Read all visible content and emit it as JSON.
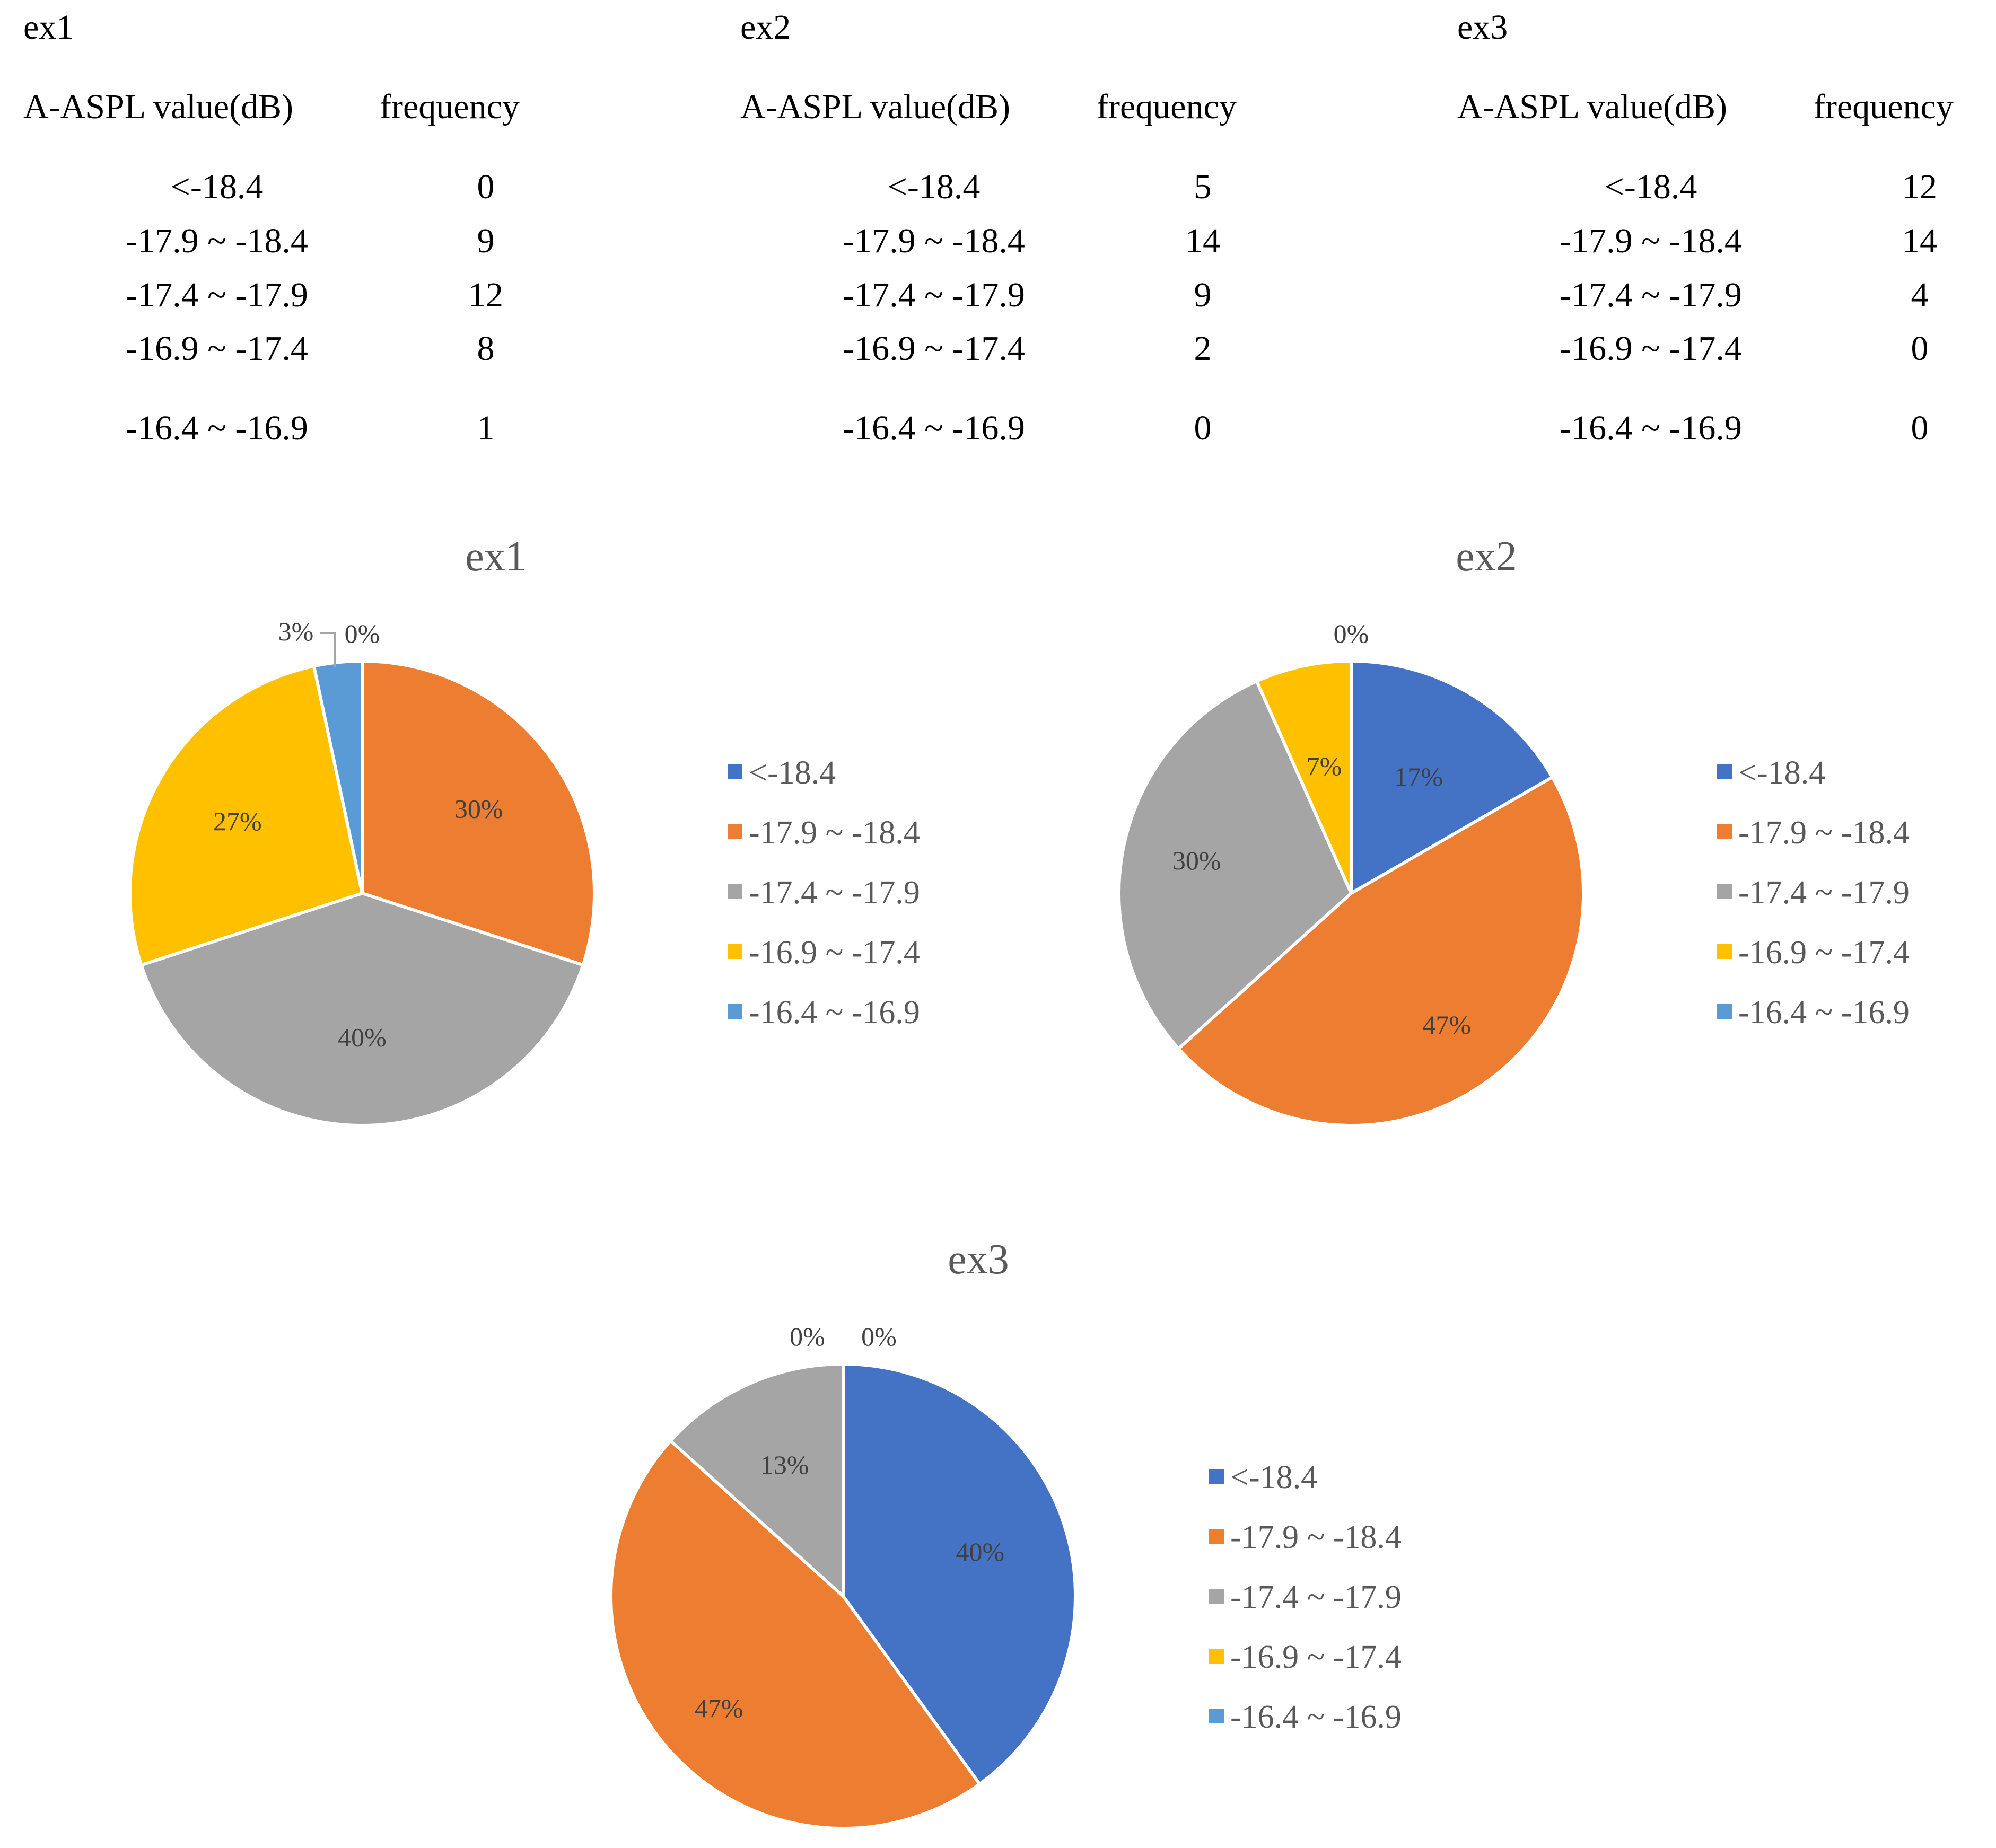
{
  "tables": [
    {
      "title": "ex1",
      "header_value": "A-ASPL value(dB)",
      "header_freq": "frequency",
      "rows": [
        {
          "range": "<-18.4",
          "freq": "0"
        },
        {
          "range": "-17.9 ~ -18.4",
          "freq": "9"
        },
        {
          "range": "-17.4 ~ -17.9",
          "freq": "12"
        },
        {
          "range": "-16.9 ~ -17.4",
          "freq": "8"
        },
        {
          "range": "-16.4 ~ -16.9",
          "freq": "1"
        }
      ]
    },
    {
      "title": "ex2",
      "header_value": "A-ASPL value(dB)",
      "header_freq": "frequency",
      "rows": [
        {
          "range": "<-18.4",
          "freq": "5"
        },
        {
          "range": "-17.9 ~ -18.4",
          "freq": "14"
        },
        {
          "range": "-17.4 ~ -17.9",
          "freq": "9"
        },
        {
          "range": "-16.9 ~ -17.4",
          "freq": "2"
        },
        {
          "range": "-16.4 ~ -16.9",
          "freq": "0"
        }
      ]
    },
    {
      "title": "ex3",
      "header_value": "A-ASPL value(dB)",
      "header_freq": "frequency",
      "rows": [
        {
          "range": "<-18.4",
          "freq": "12"
        },
        {
          "range": "-17.9 ~ -18.4",
          "freq": "14"
        },
        {
          "range": "-17.4 ~ -17.9",
          "freq": "4"
        },
        {
          "range": "-16.9 ~ -17.4",
          "freq": "0"
        },
        {
          "range": "-16.4 ~ -16.9",
          "freq": "0"
        }
      ]
    }
  ],
  "colors": [
    "#4472C4",
    "#ED7D31",
    "#A5A5A5",
    "#FFC000",
    "#5B9BD5"
  ],
  "chart_data": [
    {
      "type": "pie",
      "title": "ex1",
      "categories": [
        "<-18.4",
        "-17.9 ~ -18.4",
        "-17.4 ~ -17.9",
        "-16.9 ~ -17.4",
        "-16.4 ~ -16.9"
      ],
      "values": [
        0,
        9,
        12,
        8,
        1
      ],
      "labels": [
        "0%",
        "30%",
        "40%",
        "27%",
        "3%"
      ],
      "legend": "right"
    },
    {
      "type": "pie",
      "title": "ex2",
      "categories": [
        "<-18.4",
        "-17.9 ~ -18.4",
        "-17.4 ~ -17.9",
        "-16.9 ~ -17.4",
        "-16.4 ~ -16.9"
      ],
      "values": [
        5,
        14,
        9,
        2,
        0
      ],
      "labels": [
        "17%",
        "47%",
        "30%",
        "7%",
        "0%"
      ],
      "legend": "right"
    },
    {
      "type": "pie",
      "title": "ex3",
      "categories": [
        "<-18.4",
        "-17.9 ~ -18.4",
        "-17.4 ~ -17.9",
        "-16.9 ~ -17.4",
        "-16.4 ~ -16.9"
      ],
      "values": [
        12,
        14,
        4,
        0,
        0
      ],
      "labels": [
        "40%",
        "47%",
        "13%",
        "0%",
        "0%"
      ],
      "legend": "right"
    }
  ]
}
